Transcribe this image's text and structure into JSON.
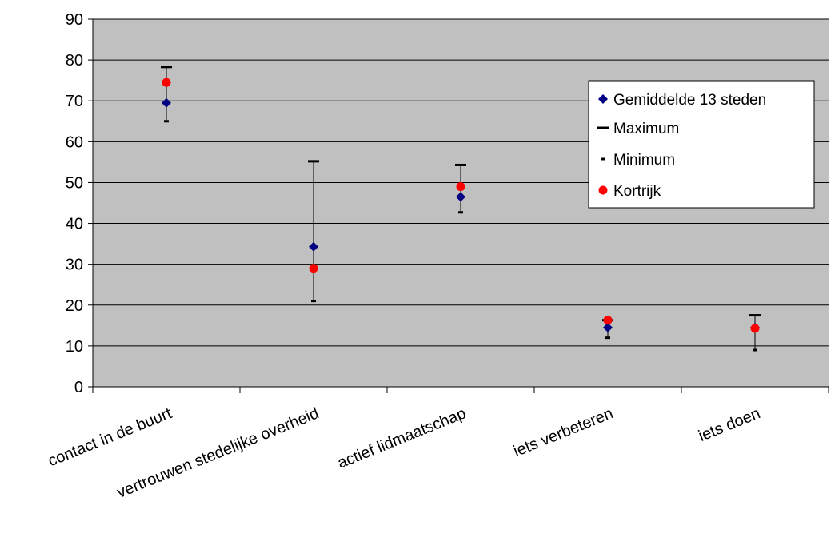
{
  "chart_data": {
    "type": "scatter",
    "title": "",
    "xlabel": "",
    "ylabel": "",
    "ylim": [
      0,
      90
    ],
    "yticks": [
      0,
      10,
      20,
      30,
      40,
      50,
      60,
      70,
      80,
      90
    ],
    "grid": true,
    "legend_position": "right",
    "categories": [
      "contact in de buurt",
      "vertrouwen stedelijke overheid",
      "actief lidmaatschap",
      "iets verbeteren",
      "iets doen"
    ],
    "series": [
      {
        "name": "Gemiddelde 13 steden",
        "marker": "diamond",
        "color": "#000080",
        "values": [
          69.5,
          34.3,
          46.5,
          14.5,
          14.5
        ]
      },
      {
        "name": "Maximum",
        "marker": "dash-long",
        "color": "#000000",
        "values": [
          78.3,
          55.2,
          54.3,
          16.3,
          17.5
        ]
      },
      {
        "name": "Minimum",
        "marker": "dash-short",
        "color": "#000000",
        "values": [
          65.0,
          21.0,
          42.7,
          12.0,
          9.0
        ]
      },
      {
        "name": "Kortrijk",
        "marker": "circle",
        "color": "#ff0000",
        "values": [
          74.5,
          29.0,
          49.0,
          16.3,
          14.3
        ]
      }
    ],
    "plot_background": "#c0c0c0"
  }
}
